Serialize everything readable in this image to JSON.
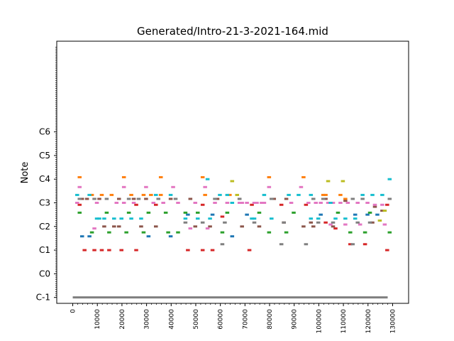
{
  "chart_data": {
    "type": "scatter",
    "title": "Generated/Intro-21-3-2021-164.mid",
    "xlabel": "",
    "ylabel": "Note",
    "xlim": [
      -6500,
      136500
    ],
    "ylim": [
      -3,
      130
    ],
    "x_ticks": [
      0,
      10000,
      20000,
      30000,
      40000,
      50000,
      60000,
      70000,
      80000,
      90000,
      100000,
      110000,
      120000,
      130000
    ],
    "x_tick_labels": [
      "0",
      "10000",
      "20000",
      "30000",
      "40000",
      "50000",
      "60000",
      "70000",
      "80000",
      "90000",
      "100000",
      "110000",
      "120000",
      "130000"
    ],
    "y_ticks": [
      0,
      12,
      24,
      36,
      48,
      60,
      72,
      84
    ],
    "y_tick_labels": [
      "C-1",
      "C0",
      "C1",
      "C2",
      "C3",
      "C4",
      "C5",
      "C6"
    ],
    "grid": false,
    "note_length": 1600,
    "baseline": {
      "start": 0,
      "end": 128000,
      "pitch": 0,
      "color": "#7f7f7f"
    },
    "series": [
      {
        "color": "#d62728",
        "notes": [
          [
            4000,
            24
          ],
          [
            8000,
            24
          ],
          [
            11000,
            24
          ],
          [
            14000,
            24
          ],
          [
            19000,
            24
          ],
          [
            25000,
            24
          ],
          [
            46000,
            24
          ],
          [
            52000,
            24
          ],
          [
            56000,
            24
          ],
          [
            71000,
            24
          ],
          [
            2000,
            47
          ],
          [
            25000,
            47
          ],
          [
            33000,
            47
          ],
          [
            52000,
            47
          ],
          [
            60000,
            41
          ],
          [
            72000,
            47
          ],
          [
            84000,
            47
          ],
          [
            94000,
            47
          ],
          [
            102000,
            38
          ],
          [
            106000,
            35
          ],
          [
            112000,
            27
          ],
          [
            118000,
            27
          ],
          [
            127000,
            24
          ],
          [
            127000,
            47
          ]
        ]
      },
      {
        "color": "#1f77b4",
        "notes": [
          [
            3000,
            31
          ],
          [
            6000,
            31
          ],
          [
            30000,
            31
          ],
          [
            39000,
            31
          ],
          [
            64000,
            31
          ],
          [
            100000,
            42
          ],
          [
            114000,
            42
          ],
          [
            119000,
            42
          ],
          [
            123000,
            42
          ],
          [
            46000,
            42
          ],
          [
            56000,
            42
          ],
          [
            70000,
            42
          ]
        ]
      },
      {
        "color": "#ff7f0e",
        "notes": [
          [
            2000,
            61
          ],
          [
            20000,
            61
          ],
          [
            35000,
            61
          ],
          [
            52000,
            61
          ],
          [
            79000,
            61
          ],
          [
            93000,
            61
          ],
          [
            7000,
            52
          ],
          [
            11000,
            52
          ],
          [
            15000,
            52
          ],
          [
            23000,
            52
          ],
          [
            28000,
            52
          ],
          [
            31000,
            52
          ],
          [
            35000,
            52
          ],
          [
            53000,
            52
          ],
          [
            63000,
            52
          ],
          [
            101000,
            52
          ],
          [
            102000,
            52
          ],
          [
            108000,
            52
          ],
          [
            110000,
            50
          ]
        ]
      },
      {
        "color": "#2ca02c",
        "notes": [
          [
            7000,
            33
          ],
          [
            14000,
            33
          ],
          [
            21000,
            33
          ],
          [
            28000,
            33
          ],
          [
            38000,
            33
          ],
          [
            42000,
            33
          ],
          [
            60000,
            33
          ],
          [
            79000,
            33
          ],
          [
            86000,
            33
          ],
          [
            112000,
            33
          ],
          [
            118000,
            33
          ],
          [
            128000,
            33
          ],
          [
            2000,
            43
          ],
          [
            13000,
            43
          ],
          [
            22000,
            43
          ],
          [
            30000,
            43
          ],
          [
            37000,
            43
          ],
          [
            45000,
            43
          ],
          [
            50000,
            43
          ],
          [
            62000,
            43
          ],
          [
            75000,
            43
          ],
          [
            89000,
            43
          ],
          [
            107000,
            43
          ],
          [
            120000,
            43
          ]
        ]
      },
      {
        "color": "#8c564b",
        "notes": [
          [
            12000,
            36
          ],
          [
            16000,
            36
          ],
          [
            18000,
            36
          ],
          [
            27000,
            36
          ],
          [
            33000,
            36
          ],
          [
            49000,
            36
          ],
          [
            55000,
            36
          ],
          [
            68000,
            36
          ],
          [
            75000,
            36
          ],
          [
            93000,
            36
          ],
          [
            97000,
            36
          ],
          [
            105000,
            36
          ],
          [
            3000,
            50
          ],
          [
            5000,
            50
          ],
          [
            10000,
            50
          ],
          [
            18000,
            50
          ],
          [
            24000,
            50
          ],
          [
            29000,
            50
          ],
          [
            39000,
            50
          ],
          [
            47000,
            50
          ],
          [
            58000,
            50
          ],
          [
            67000,
            50
          ],
          [
            81000,
            50
          ],
          [
            86000,
            50
          ],
          [
            102000,
            50
          ],
          [
            110000,
            49
          ],
          [
            122000,
            46
          ],
          [
            125000,
            44
          ],
          [
            85000,
            38
          ],
          [
            96000,
            38
          ],
          [
            121000,
            38
          ]
        ]
      },
      {
        "color": "#e377c2",
        "notes": [
          [
            1000,
            48
          ],
          [
            9000,
            48
          ],
          [
            17000,
            48
          ],
          [
            20000,
            48
          ],
          [
            24000,
            48
          ],
          [
            32000,
            48
          ],
          [
            36000,
            48
          ],
          [
            42000,
            48
          ],
          [
            49000,
            48
          ],
          [
            57000,
            48
          ],
          [
            62000,
            48
          ],
          [
            67000,
            48
          ],
          [
            68000,
            48
          ],
          [
            70000,
            48
          ],
          [
            73000,
            48
          ],
          [
            74000,
            48
          ],
          [
            76000,
            48
          ],
          [
            77000,
            48
          ],
          [
            88000,
            48
          ],
          [
            95000,
            48
          ],
          [
            98000,
            48
          ],
          [
            100000,
            48
          ],
          [
            103000,
            48
          ],
          [
            105000,
            48
          ],
          [
            108000,
            48
          ],
          [
            111000,
            48
          ],
          [
            115000,
            48
          ],
          [
            119000,
            48
          ],
          [
            122000,
            47
          ],
          [
            125000,
            47
          ],
          [
            8000,
            35
          ],
          [
            47000,
            35
          ],
          [
            54000,
            35
          ],
          [
            104000,
            37
          ],
          [
            110000,
            37
          ],
          [
            116000,
            37
          ],
          [
            126000,
            37
          ],
          [
            2000,
            56
          ],
          [
            20000,
            56
          ],
          [
            29000,
            56
          ],
          [
            40000,
            56
          ],
          [
            53000,
            56
          ],
          [
            79000,
            56
          ],
          [
            92000,
            56
          ]
        ]
      },
      {
        "color": "#7f7f7f",
        "notes": [
          [
            2000,
            50
          ],
          [
            8000,
            50
          ],
          [
            13000,
            50
          ],
          [
            22000,
            50
          ],
          [
            26000,
            50
          ],
          [
            34000,
            50
          ],
          [
            41000,
            50
          ],
          [
            57000,
            50
          ],
          [
            67000,
            50
          ],
          [
            80000,
            50
          ],
          [
            97000,
            50
          ],
          [
            101000,
            50
          ],
          [
            113000,
            50
          ],
          [
            117000,
            50
          ],
          [
            128000,
            50
          ],
          [
            45000,
            38
          ],
          [
            52000,
            38
          ],
          [
            61000,
            38
          ],
          [
            73000,
            38
          ],
          [
            85000,
            38
          ],
          [
            99000,
            38
          ],
          [
            105000,
            38
          ],
          [
            115000,
            38
          ],
          [
            120000,
            38
          ],
          [
            60000,
            27
          ],
          [
            84000,
            27
          ],
          [
            94000,
            27
          ],
          [
            113000,
            27
          ]
        ]
      },
      {
        "color": "#bcbd22",
        "notes": [
          [
            64000,
            59
          ],
          [
            103000,
            59
          ],
          [
            109000,
            59
          ],
          [
            124000,
            39
          ],
          [
            126000,
            44
          ],
          [
            66000,
            52
          ]
        ]
      },
      {
        "color": "#17becf",
        "notes": [
          [
            1000,
            52
          ],
          [
            6000,
            52
          ],
          [
            10000,
            40
          ],
          [
            12000,
            40
          ],
          [
            16000,
            40
          ],
          [
            19000,
            40
          ],
          [
            23000,
            40
          ],
          [
            27000,
            40
          ],
          [
            45000,
            40
          ],
          [
            50000,
            40
          ],
          [
            54000,
            60
          ],
          [
            55000,
            40
          ],
          [
            59000,
            52
          ],
          [
            62000,
            52
          ],
          [
            64000,
            48
          ],
          [
            73000,
            40
          ],
          [
            77000,
            52
          ],
          [
            80000,
            40
          ],
          [
            91000,
            52
          ],
          [
            96000,
            40
          ],
          [
            99000,
            40
          ],
          [
            104000,
            48
          ],
          [
            106000,
            40
          ],
          [
            110000,
            40
          ],
          [
            114000,
            40
          ],
          [
            117000,
            52
          ],
          [
            121000,
            52
          ],
          [
            125000,
            52
          ],
          [
            128000,
            60
          ],
          [
            9000,
            40
          ],
          [
            33000,
            52
          ],
          [
            39000,
            52
          ],
          [
            72000,
            40
          ],
          [
            87000,
            52
          ],
          [
            96000,
            52
          ]
        ]
      }
    ]
  }
}
